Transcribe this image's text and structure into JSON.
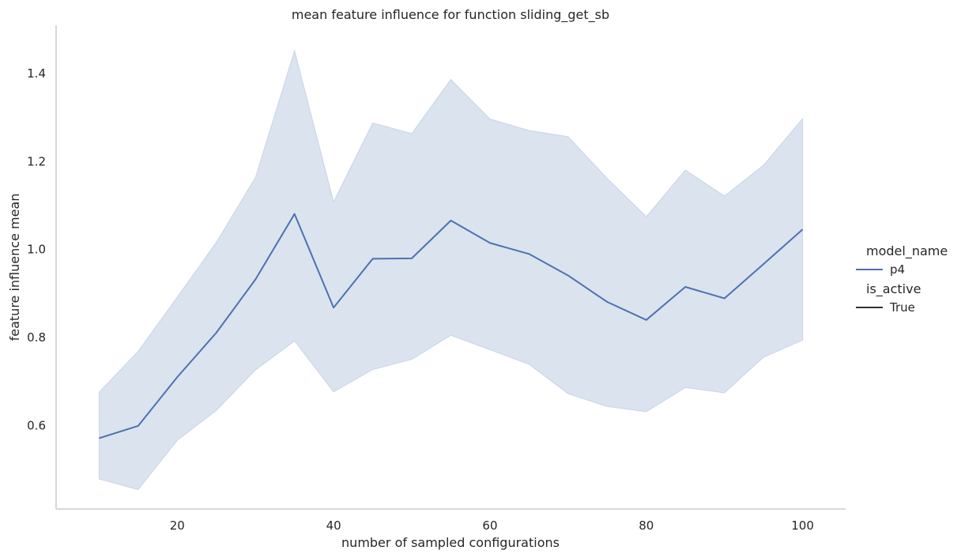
{
  "chart_data": {
    "type": "line",
    "title": "mean feature influence for function sliding_get_sb",
    "xlabel": "number of sampled configurations",
    "ylabel": "feature influence mean",
    "xlim": [
      4.5,
      105.5
    ],
    "ylim": [
      0.41,
      1.51
    ],
    "xticks": [
      20,
      40,
      60,
      80,
      100
    ],
    "yticks": [
      0.6,
      0.8,
      1.0,
      1.2,
      1.4
    ],
    "grid": false,
    "legend_placement": "right",
    "legend": {
      "hue_title": "model_name",
      "hue_entries": [
        "p4"
      ],
      "style_title": "is_active",
      "style_entries": [
        "True"
      ]
    },
    "colors": {
      "line": "#4c72b0",
      "band": "#4c72b0",
      "axis": "#cccccc",
      "text": "#262626",
      "style_line": "#333333"
    },
    "series": [
      {
        "name": "p4",
        "x": [
          10,
          15,
          20,
          25,
          30,
          35,
          40,
          45,
          50,
          55,
          60,
          65,
          70,
          75,
          80,
          85,
          90,
          95,
          100
        ],
        "values": [
          0.571,
          0.599,
          0.71,
          0.811,
          0.932,
          1.081,
          0.868,
          0.979,
          0.98,
          1.066,
          1.015,
          0.99,
          0.941,
          0.881,
          0.84,
          0.915,
          0.889,
          0.967,
          1.046
        ],
        "ci_lower": [
          0.478,
          0.454,
          0.566,
          0.634,
          0.726,
          0.792,
          0.676,
          0.727,
          0.75,
          0.805,
          0.772,
          0.739,
          0.672,
          0.643,
          0.631,
          0.686,
          0.674,
          0.755,
          0.794
        ],
        "ci_upper": [
          0.676,
          0.769,
          0.892,
          1.017,
          1.164,
          1.453,
          1.109,
          1.288,
          1.264,
          1.387,
          1.297,
          1.271,
          1.257,
          1.162,
          1.075,
          1.181,
          1.122,
          1.192,
          1.298
        ]
      }
    ]
  }
}
